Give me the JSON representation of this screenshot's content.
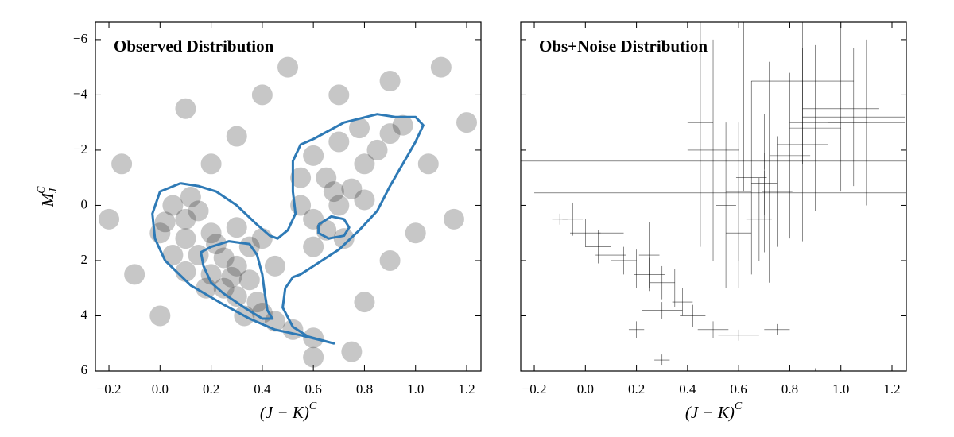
{
  "chart_data": [
    {
      "type": "scatter",
      "title": "Observed Distribution",
      "xlabel": {
        "text": "(J − K)",
        "sup": "C"
      },
      "ylabel": {
        "text": "M",
        "sub": "J",
        "sup": "C"
      },
      "xlim": [
        -0.253,
        1.256
      ],
      "ylim": [
        6,
        -6.63
      ],
      "xticks": [
        {
          "value": -0.2,
          "label": "−0.2"
        },
        {
          "value": 0,
          "label": "0.0"
        },
        0.2,
        0.4,
        0.6,
        0.8,
        {
          "value": 1,
          "label": "1.0"
        },
        1.2
      ],
      "yticks": [
        {
          "value": -6,
          "label": "−6"
        },
        {
          "value": -4,
          "label": "−4"
        },
        {
          "value": -2,
          "label": "−2"
        },
        0,
        2,
        4,
        6
      ],
      "ytick_labels": true,
      "color": "#000000",
      "points": {
        "x": [
          0.05,
          0.1,
          0.0,
          0.1,
          0.2,
          0.05,
          0.15,
          0.25,
          0.3,
          0.2,
          0.35,
          0.25,
          0.3,
          0.38,
          0.4,
          0.45,
          0.52,
          0.6,
          0.35,
          0.3,
          0.15,
          0.4,
          0.45,
          0.28,
          0.22,
          0.1,
          0.18,
          0.12,
          0.02,
          0.33,
          0.55,
          0.6,
          0.65,
          0.68,
          0.7,
          0.75,
          0.8,
          0.85,
          0.9,
          0.7,
          0.6,
          0.65,
          0.72,
          0.6,
          0.55,
          0.8,
          0.95,
          0.78,
          -0.15,
          -0.1,
          0.3,
          0.1,
          0.5,
          1.1,
          1.2,
          1.15,
          0.9,
          0.8,
          0.6,
          0.0,
          -0.2,
          0.4,
          0.9,
          1.05,
          1.0,
          0.75,
          0.2,
          0.7
        ],
        "y": [
          0,
          0.5,
          1.0,
          1.2,
          1.0,
          1.8,
          1.8,
          1.9,
          2.2,
          2.5,
          2.7,
          3.0,
          3.3,
          3.5,
          3.9,
          4.2,
          4.5,
          4.8,
          1.5,
          0.8,
          0.2,
          1.2,
          2.2,
          2.6,
          1.4,
          2.4,
          3.0,
          -0.3,
          0.6,
          4.0,
          -1.0,
          -1.8,
          -1.0,
          -0.5,
          0.0,
          -0.6,
          -1.5,
          -2.0,
          -2.6,
          -2.3,
          0.5,
          0.9,
          1.2,
          1.5,
          0.0,
          -0.2,
          -2.9,
          -2.8,
          -1.5,
          2.5,
          -2.5,
          -3.5,
          -5,
          -5,
          -3,
          0.5,
          2.0,
          3.5,
          5.5,
          4.0,
          0.5,
          -4,
          -4.5,
          -1.5,
          1.0,
          5.3,
          -1.5,
          -4.0
        ]
      },
      "contours": [
        {
          "color": "#2e7ab6",
          "x": [
            0.08,
            0.0,
            -0.03,
            -0.02,
            0.02,
            0.12,
            0.25,
            0.35,
            0.45,
            0.55,
            0.68,
            0.58,
            0.52,
            0.48,
            0.49,
            0.52,
            0.55,
            0.6,
            0.7,
            0.78,
            0.85,
            0.9,
            0.95,
            1.0,
            1.03,
            1.0,
            0.92,
            0.85,
            0.72,
            0.6,
            0.55,
            0.52,
            0.52,
            0.53,
            0.5,
            0.46,
            0.43,
            0.38,
            0.3,
            0.22,
            0.15,
            0.08
          ],
          "y": [
            -0.8,
            -0.5,
            0.3,
            1.2,
            2.0,
            2.9,
            3.6,
            4.1,
            4.5,
            4.7,
            5.0,
            4.75,
            4.4,
            3.7,
            3.0,
            2.6,
            2.5,
            2.2,
            1.6,
            0.9,
            0.2,
            -0.7,
            -1.5,
            -2.3,
            -2.9,
            -3.2,
            -3.2,
            -3.3,
            -3.0,
            -2.4,
            -2.2,
            -1.6,
            -0.5,
            0.3,
            0.9,
            1.2,
            1.1,
            0.7,
            0.0,
            -0.5,
            -0.7,
            -0.8
          ]
        },
        {
          "color": "#2e7ab6",
          "x": [
            0.2,
            0.27,
            0.35,
            0.38,
            0.4,
            0.41,
            0.42,
            0.44,
            0.4,
            0.33,
            0.25,
            0.2,
            0.17,
            0.16,
            0.2
          ],
          "y": [
            1.5,
            1.3,
            1.4,
            1.8,
            2.5,
            3.2,
            3.8,
            4.1,
            4.1,
            3.7,
            3.2,
            2.8,
            2.2,
            1.7,
            1.5
          ]
        },
        {
          "color": "#2e7ab6",
          "x": [
            0.62,
            0.62,
            0.66,
            0.72,
            0.74,
            0.72,
            0.67,
            0.62
          ],
          "y": [
            0.7,
            1.0,
            1.2,
            1.1,
            0.8,
            0.5,
            0.4,
            0.7
          ]
        }
      ]
    },
    {
      "type": "errorbar",
      "title": "Obs+Noise Distribution",
      "xlabel": {
        "text": "(J − K)",
        "sup": "C"
      },
      "xlim": [
        -0.253,
        1.256
      ],
      "ylim": [
        6,
        -6.63
      ],
      "xticks": [
        {
          "value": -0.2,
          "label": "−0.2"
        },
        {
          "value": 0,
          "label": "0.0"
        },
        0.2,
        0.4,
        0.6,
        0.8,
        {
          "value": 1,
          "label": "1.0"
        },
        1.2
      ],
      "yticks": [
        -6,
        -4,
        -2,
        0,
        2,
        4,
        6
      ],
      "ytick_labels": false,
      "color": "#000000",
      "x": [
        0.0,
        0.05,
        0.1,
        0.15,
        0.2,
        0.25,
        0.3,
        0.35,
        0.38,
        0.42,
        0.5,
        0.6,
        -0.05,
        0.1,
        0.25,
        0.3,
        0.2,
        0.3,
        0.75,
        0.9,
        0.55,
        0.6,
        0.65,
        0.7,
        0.72,
        0.75,
        0.68,
        0.6,
        0.8,
        0.85,
        0.9,
        0.95,
        1.0,
        1.05,
        1.1,
        0.5,
        0.45,
        0.62,
        0.85,
        0.7,
        0.7,
        -0.1
      ],
      "y": [
        1.0,
        1.5,
        1.8,
        2.0,
        2.3,
        2.5,
        2.8,
        3.0,
        3.5,
        4.0,
        4.5,
        4.7,
        0.5,
        1.0,
        1.8,
        3.8,
        4.5,
        5.6,
        4.5,
        6.0,
        0.0,
        -0.5,
        -1.0,
        -0.8,
        -1.2,
        -0.5,
        0.5,
        1.0,
        -1.8,
        -2.2,
        -2.8,
        -3.0,
        -3.5,
        -3.2,
        -3.0,
        -2.0,
        -3.0,
        -4.0,
        -4.5,
        -1.6,
        -0.45,
        0.5
      ],
      "xerr": [
        0.06,
        0.05,
        0.06,
        0.05,
        0.05,
        0.06,
        0.05,
        0.05,
        0.04,
        0.05,
        0.06,
        0.08,
        0.04,
        0.05,
        0.04,
        0.08,
        0.03,
        0.03,
        0.05,
        0.03,
        0.04,
        0.05,
        0.06,
        0.05,
        0.08,
        0.06,
        0.05,
        0.05,
        0.08,
        0.1,
        0.1,
        0.15,
        0.15,
        0.2,
        0.15,
        0.1,
        0.05,
        0.08,
        0.2,
        1.0,
        0.9,
        0.03
      ],
      "yerr": [
        0.5,
        0.6,
        0.8,
        0.5,
        0.7,
        0.6,
        0.6,
        0.7,
        0.5,
        0.4,
        0.3,
        0.2,
        0.6,
        1.0,
        1.2,
        0.3,
        0.3,
        0.2,
        0.2,
        0.1,
        3.0,
        2.5,
        3.5,
        2.5,
        4.0,
        2.0,
        1.5,
        2.0,
        3.0,
        3.5,
        3.0,
        4.0,
        3.0,
        2.5,
        3.0,
        4.0,
        4.5,
        3.5,
        3.0,
        0.3,
        0.8,
        0.2
      ]
    }
  ]
}
